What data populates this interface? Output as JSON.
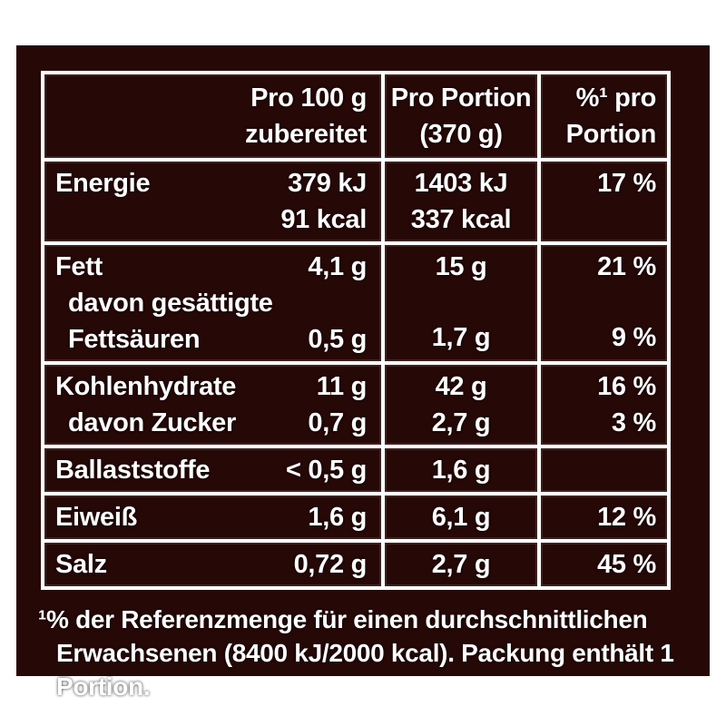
{
  "colors": {
    "page_bg": "#ffffff",
    "panel_bg": "#260807",
    "grid": "#ffffff",
    "text": "#ffffff"
  },
  "table": {
    "header": {
      "per100_line1": "Pro 100 g",
      "per100_line2": "zubereitet",
      "portion_line1": "Pro Portion",
      "portion_line2": "(370 g)",
      "percent_line1": "%¹ pro",
      "percent_line2": "Portion"
    },
    "rows": {
      "energie": {
        "label": "Energie",
        "per100_kj": "379 kJ",
        "per100_kcal": "91 kcal",
        "portion_kj": "1403 kJ",
        "portion_kcal": "337 kcal",
        "percent": "17 %"
      },
      "fett": {
        "label": "Fett",
        "per100": "4,1 g",
        "sub_label_line1": "davon gesättigte",
        "sub_label_line2": "Fettsäuren",
        "sub_per100": "0,5 g",
        "portion": "15 g",
        "sub_portion": "1,7 g",
        "percent": "21 %",
        "sub_percent": "9 %"
      },
      "kohlenhydrate": {
        "label": "Kohlenhydrate",
        "per100": "11 g",
        "sub_label": "davon Zucker",
        "sub_per100": "0,7 g",
        "portion": "42 g",
        "sub_portion": "2,7 g",
        "percent": "16 %",
        "sub_percent": "3 %"
      },
      "ballaststoffe": {
        "label": "Ballaststoffe",
        "per100": "< 0,5 g",
        "portion": "1,6 g",
        "percent": ""
      },
      "eiweiss": {
        "label": "Eiweiß",
        "per100": "1,6 g",
        "portion": "6,1 g",
        "percent": "12 %"
      },
      "salz": {
        "label": "Salz",
        "per100": "0,72 g",
        "portion": "2,7 g",
        "percent": "45 %"
      }
    }
  },
  "footnote": {
    "line1": "¹% der Referenzmenge für einen durchschnittlichen",
    "line2": "Erwachsenen (8400 kJ/2000 kcal). Packung enthält 1 Portion."
  }
}
